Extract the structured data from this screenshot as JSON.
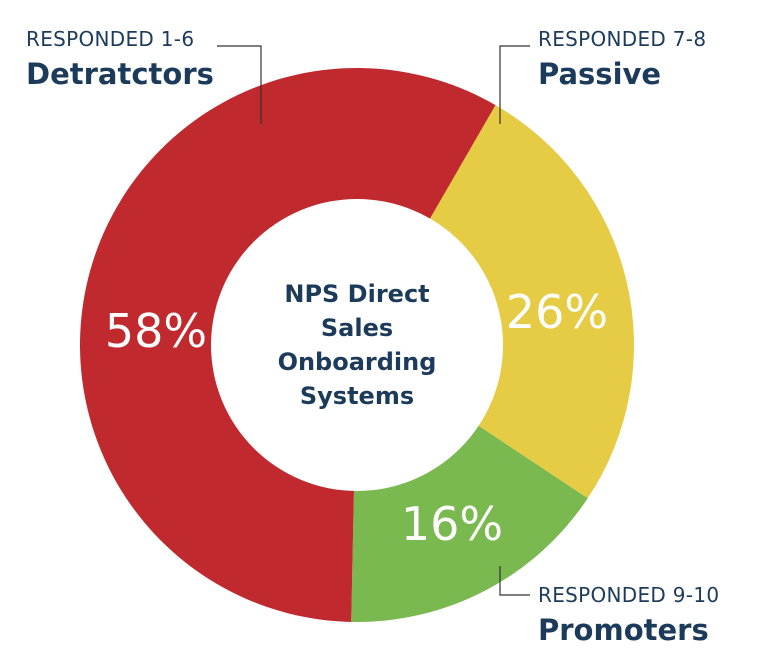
{
  "chart_data": {
    "type": "pie",
    "style": "donut",
    "center_text": [
      "NPS Direct",
      "Sales",
      "Onboarding",
      "Systems"
    ],
    "slices": [
      {
        "name": "Passive",
        "range_label": "RESPONDED 7-8",
        "value": 26,
        "value_label": "26%",
        "color": "#e5cc44"
      },
      {
        "name": "Promoters",
        "range_label": "RESPONDED 9-10",
        "value": 16,
        "value_label": "16%",
        "color": "#7ab850"
      },
      {
        "name": "Detratctors",
        "range_label": "RESPONDED 1-6",
        "value": 58,
        "value_label": "58%",
        "color": "#c0292e"
      }
    ],
    "text_color": "#1c3b5a",
    "leader_color": "#333333"
  }
}
